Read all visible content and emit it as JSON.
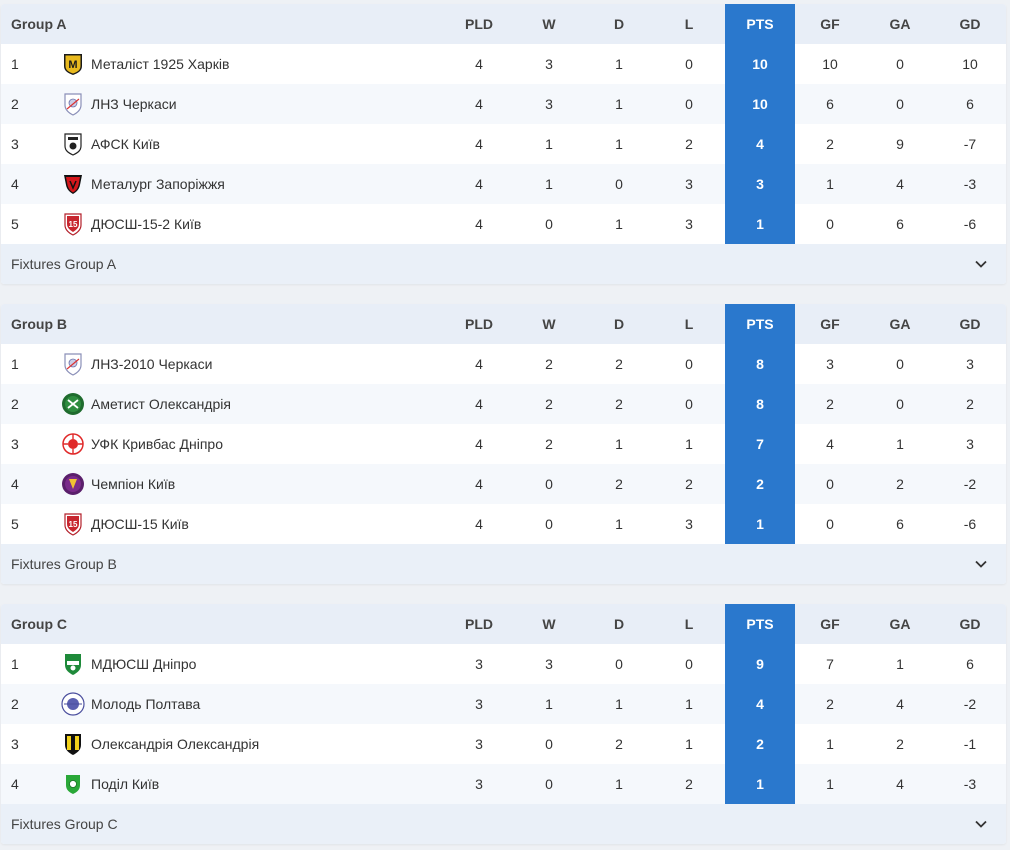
{
  "columns": {
    "pld": "PLD",
    "w": "W",
    "d": "D",
    "l": "L",
    "pts": "PTS",
    "gf": "GF",
    "ga": "GA",
    "gd": "GD"
  },
  "colors": {
    "accent": "#2a78cd",
    "header_bg": "#e8eef7",
    "row_alt": "#f5f8fc"
  },
  "groups": [
    {
      "name": "Group A",
      "fixtures_label": "Fixtures Group A",
      "teams": [
        {
          "pos": "1",
          "name": "Металіст 1925 Харків",
          "pld": "4",
          "w": "3",
          "d": "1",
          "l": "0",
          "pts": "10",
          "gf": "10",
          "ga": "0",
          "gd": "10",
          "icon": "metalist-logo-icon"
        },
        {
          "pos": "2",
          "name": "ЛНЗ Черкаси",
          "pld": "4",
          "w": "3",
          "d": "1",
          "l": "0",
          "pts": "10",
          "gf": "6",
          "ga": "0",
          "gd": "6",
          "icon": "lnz-logo-icon"
        },
        {
          "pos": "3",
          "name": "АФСК Київ",
          "pld": "4",
          "w": "1",
          "d": "1",
          "l": "2",
          "pts": "4",
          "gf": "2",
          "ga": "9",
          "gd": "-7",
          "icon": "afsk-logo-icon"
        },
        {
          "pos": "4",
          "name": "Металург Запоріжжя",
          "pld": "4",
          "w": "1",
          "d": "0",
          "l": "3",
          "pts": "3",
          "gf": "1",
          "ga": "4",
          "gd": "-3",
          "icon": "metalurh-logo-icon"
        },
        {
          "pos": "5",
          "name": "ДЮСШ-15-2 Київ",
          "pld": "4",
          "w": "0",
          "d": "1",
          "l": "3",
          "pts": "1",
          "gf": "0",
          "ga": "6",
          "gd": "-6",
          "icon": "dyussh15-logo-icon"
        }
      ]
    },
    {
      "name": "Group B",
      "fixtures_label": "Fixtures Group B",
      "teams": [
        {
          "pos": "1",
          "name": "ЛНЗ-2010 Черкаси",
          "pld": "4",
          "w": "2",
          "d": "2",
          "l": "0",
          "pts": "8",
          "gf": "3",
          "ga": "0",
          "gd": "3",
          "icon": "lnz-logo-icon"
        },
        {
          "pos": "2",
          "name": "Аметист Олександрія",
          "pld": "4",
          "w": "2",
          "d": "2",
          "l": "0",
          "pts": "8",
          "gf": "2",
          "ga": "0",
          "gd": "2",
          "icon": "ametyst-logo-icon"
        },
        {
          "pos": "3",
          "name": "УФК Кривбас Дніпро",
          "pld": "4",
          "w": "2",
          "d": "1",
          "l": "1",
          "pts": "7",
          "gf": "4",
          "ga": "1",
          "gd": "3",
          "icon": "ufk-logo-icon"
        },
        {
          "pos": "4",
          "name": "Чемпіон Київ",
          "pld": "4",
          "w": "0",
          "d": "2",
          "l": "2",
          "pts": "2",
          "gf": "0",
          "ga": "2",
          "gd": "-2",
          "icon": "champion-logo-icon"
        },
        {
          "pos": "5",
          "name": "ДЮСШ-15 Київ",
          "pld": "4",
          "w": "0",
          "d": "1",
          "l": "3",
          "pts": "1",
          "gf": "0",
          "ga": "6",
          "gd": "-6",
          "icon": "dyussh15-logo-icon"
        }
      ]
    },
    {
      "name": "Group C",
      "fixtures_label": "Fixtures Group C",
      "teams": [
        {
          "pos": "1",
          "name": "МДЮСШ Дніпро",
          "pld": "3",
          "w": "3",
          "d": "0",
          "l": "0",
          "pts": "9",
          "gf": "7",
          "ga": "1",
          "gd": "6",
          "icon": "mdyussh-logo-icon"
        },
        {
          "pos": "2",
          "name": "Молодь Полтава",
          "pld": "3",
          "w": "1",
          "d": "1",
          "l": "1",
          "pts": "4",
          "gf": "2",
          "ga": "4",
          "gd": "-2",
          "icon": "molod-logo-icon"
        },
        {
          "pos": "3",
          "name": "Олександрія Олександрія",
          "pld": "3",
          "w": "0",
          "d": "2",
          "l": "1",
          "pts": "2",
          "gf": "1",
          "ga": "2",
          "gd": "-1",
          "icon": "oleksandriya-logo-icon"
        },
        {
          "pos": "4",
          "name": "Поділ Київ",
          "pld": "3",
          "w": "0",
          "d": "1",
          "l": "2",
          "pts": "1",
          "gf": "1",
          "ga": "4",
          "gd": "-3",
          "icon": "podil-logo-icon"
        }
      ]
    }
  ]
}
